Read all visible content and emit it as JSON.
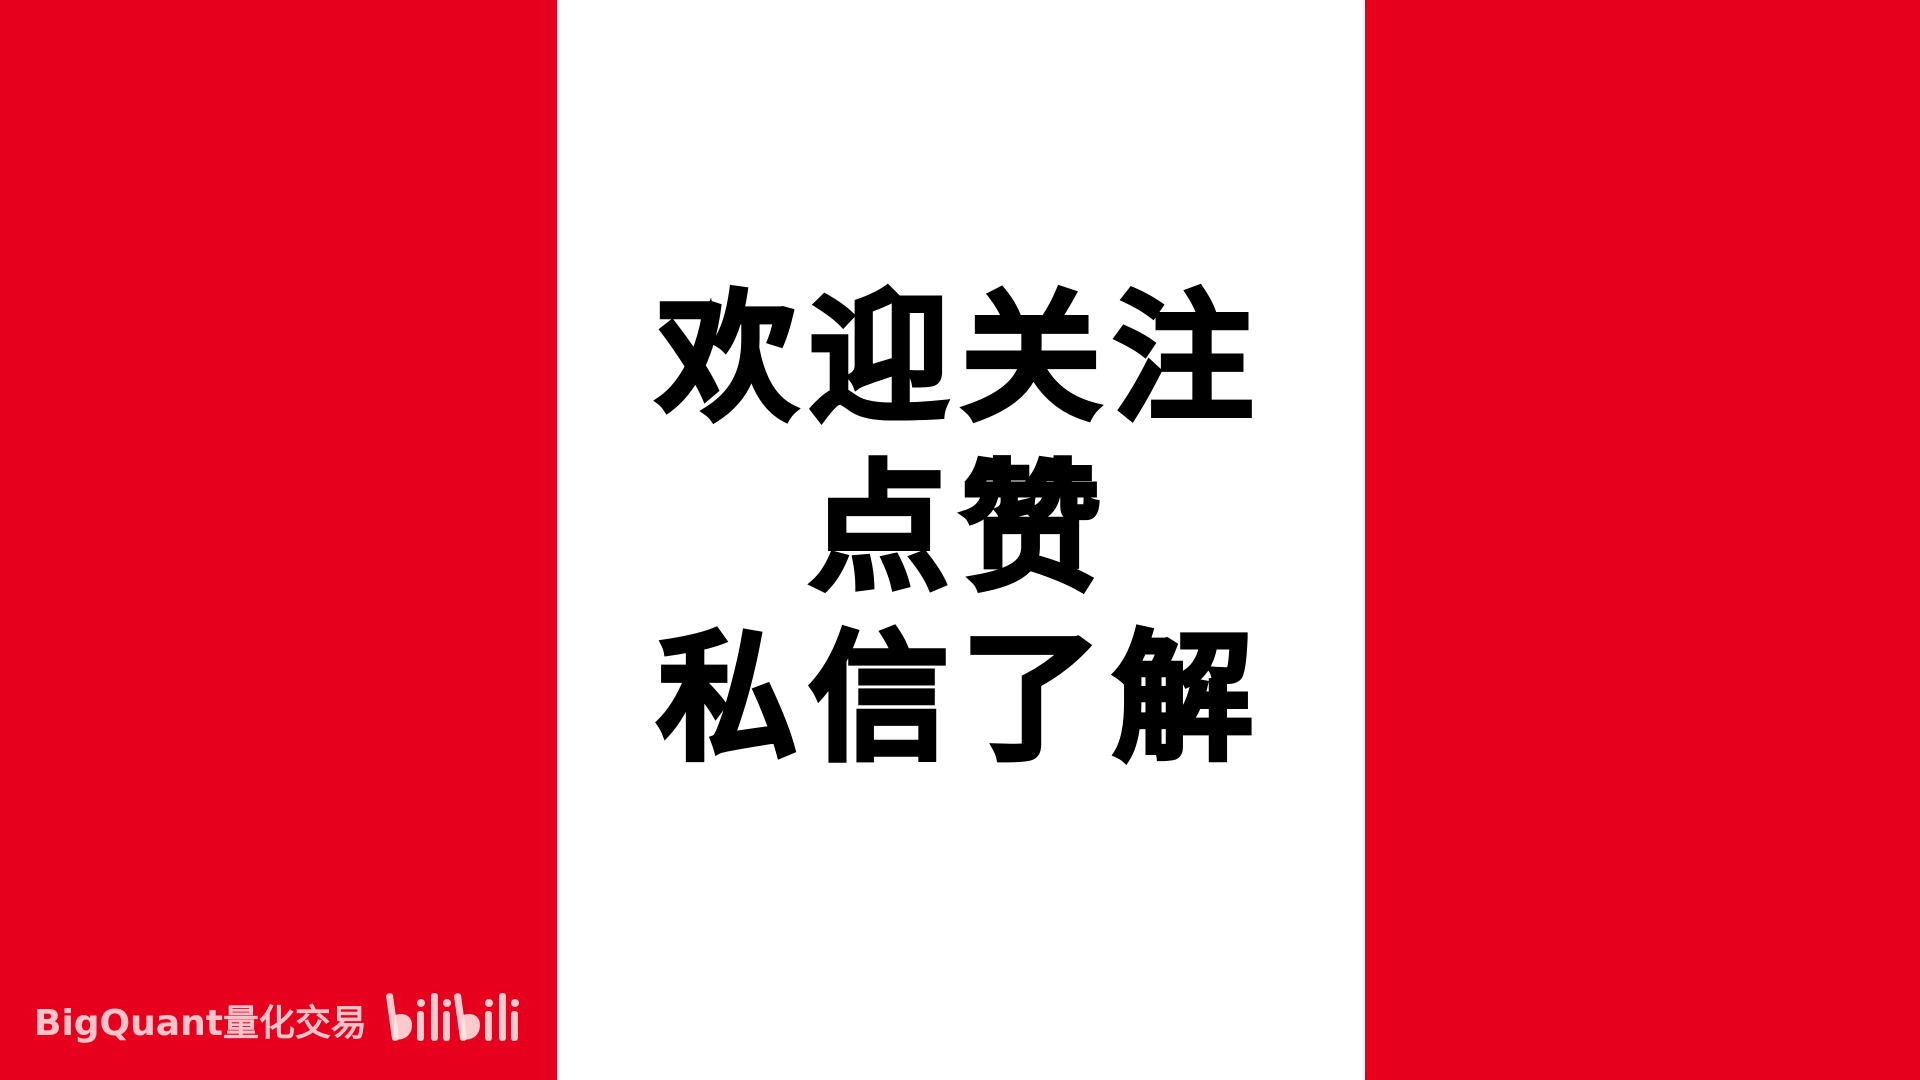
{
  "panels": {
    "side_color": "#e6001e",
    "center_color": "#ffffff"
  },
  "message": {
    "lines": [
      "欢迎关注",
      "点赞",
      "私信了解"
    ]
  },
  "watermark": {
    "text": "BigQuant量化交易",
    "logo": "bilibili"
  }
}
